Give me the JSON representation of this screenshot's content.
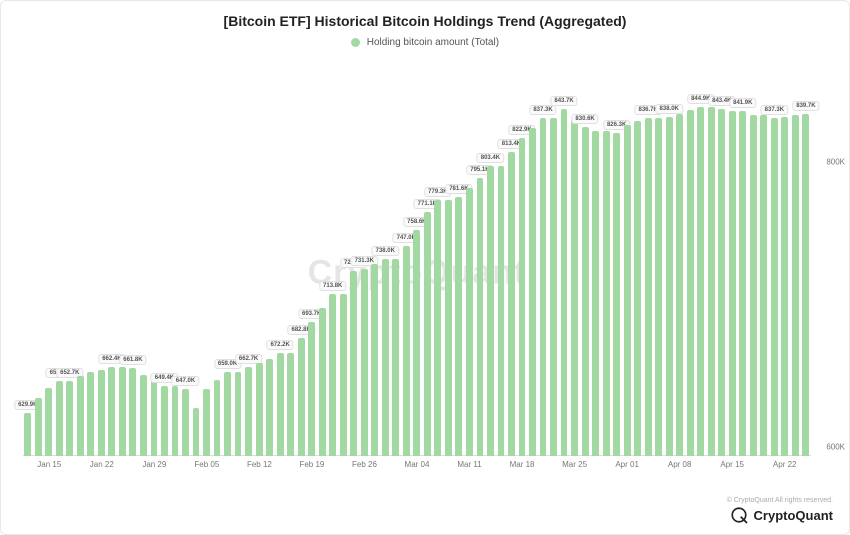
{
  "chart": {
    "type": "bar",
    "title": "[Bitcoin ETF] Historical Bitcoin Holdings Trend (Aggregated)",
    "legend": {
      "label": "Holding bitcoin amount (Total)",
      "color": "#a2d9a2"
    },
    "bar_color": "#a2d9a2",
    "background_color": "#ffffff",
    "watermark": "CryptoQuant",
    "y_axis": {
      "min": 600000,
      "max": 870000,
      "ticks": [
        {
          "value": 600000,
          "label": "600K"
        },
        {
          "value": 800000,
          "label": "800K"
        }
      ]
    },
    "x_axis": {
      "ticks": [
        "Jan 15",
        "Jan 22",
        "Jan 29",
        "Feb 05",
        "Feb 12",
        "Feb 19",
        "Feb 26",
        "Mar 04",
        "Mar 11",
        "Mar 18",
        "Mar 25",
        "Apr 01",
        "Apr 08",
        "Apr 15",
        "Apr 22"
      ]
    },
    "label_every": 5,
    "data": [
      {
        "v": 629900,
        "l": "629.9K"
      },
      {
        "v": 641000
      },
      {
        "v": 648000
      },
      {
        "v": 652700,
        "l": "652.7K"
      },
      {
        "v": 652700,
        "l": "652.7K"
      },
      {
        "v": 656000
      },
      {
        "v": 659000
      },
      {
        "v": 660500
      },
      {
        "v": 662400,
        "l": "662.4K"
      },
      {
        "v": 662400
      },
      {
        "v": 661800,
        "l": "661.8K"
      },
      {
        "v": 657000
      },
      {
        "v": 653000
      },
      {
        "v": 649400,
        "l": "649.4K"
      },
      {
        "v": 649400
      },
      {
        "v": 647000,
        "l": "647.0K"
      },
      {
        "v": 634000
      },
      {
        "v": 647000
      },
      {
        "v": 653000
      },
      {
        "v": 659000,
        "l": "659.0K"
      },
      {
        "v": 659000
      },
      {
        "v": 662700,
        "l": "662.7K"
      },
      {
        "v": 665000
      },
      {
        "v": 668000
      },
      {
        "v": 672200,
        "l": "672.2K"
      },
      {
        "v": 672200
      },
      {
        "v": 682800,
        "l": "682.8K"
      },
      {
        "v": 693700,
        "l": "693.7K"
      },
      {
        "v": 704000
      },
      {
        "v": 713800,
        "l": "713.8K"
      },
      {
        "v": 713800
      },
      {
        "v": 729500,
        "l": "729.5K"
      },
      {
        "v": 731300,
        "l": "731.3K"
      },
      {
        "v": 735000
      },
      {
        "v": 738000,
        "l": "738.0K"
      },
      {
        "v": 738000
      },
      {
        "v": 747000,
        "l": "747.0K"
      },
      {
        "v": 758600,
        "l": "758.6K"
      },
      {
        "v": 771100,
        "l": "771.1K"
      },
      {
        "v": 779300,
        "l": "779.3K"
      },
      {
        "v": 779300
      },
      {
        "v": 781600,
        "l": "781.6K"
      },
      {
        "v": 788000
      },
      {
        "v": 795100,
        "l": "795.1K"
      },
      {
        "v": 803400,
        "l": "803.4K"
      },
      {
        "v": 803400
      },
      {
        "v": 813400,
        "l": "813.4K"
      },
      {
        "v": 822900,
        "l": "822.9K"
      },
      {
        "v": 830000
      },
      {
        "v": 837300,
        "l": "837.3K"
      },
      {
        "v": 837300
      },
      {
        "v": 843700,
        "l": "843.7K"
      },
      {
        "v": 836000
      },
      {
        "v": 830600,
        "l": "830.6K"
      },
      {
        "v": 828000
      },
      {
        "v": 828000
      },
      {
        "v": 826300,
        "l": "826.3K"
      },
      {
        "v": 832000
      },
      {
        "v": 835000
      },
      {
        "v": 836700,
        "l": "836.7K"
      },
      {
        "v": 836700
      },
      {
        "v": 838000,
        "l": "838.0K"
      },
      {
        "v": 840000
      },
      {
        "v": 843000
      },
      {
        "v": 844900,
        "l": "844.9K"
      },
      {
        "v": 844900
      },
      {
        "v": 843400,
        "l": "843.4K"
      },
      {
        "v": 842000
      },
      {
        "v": 841900,
        "l": "841.9K"
      },
      {
        "v": 839000
      },
      {
        "v": 839000
      },
      {
        "v": 837300,
        "l": "837.3K"
      },
      {
        "v": 838000
      },
      {
        "v": 839000
      },
      {
        "v": 839700,
        "l": "839.7K"
      }
    ],
    "title_fontsize": 14,
    "label_fontsize": 6,
    "tick_fontsize": 8
  },
  "footer": {
    "brand": "CryptoQuant",
    "copyright": "© CryptoQuant All rights reserved."
  }
}
